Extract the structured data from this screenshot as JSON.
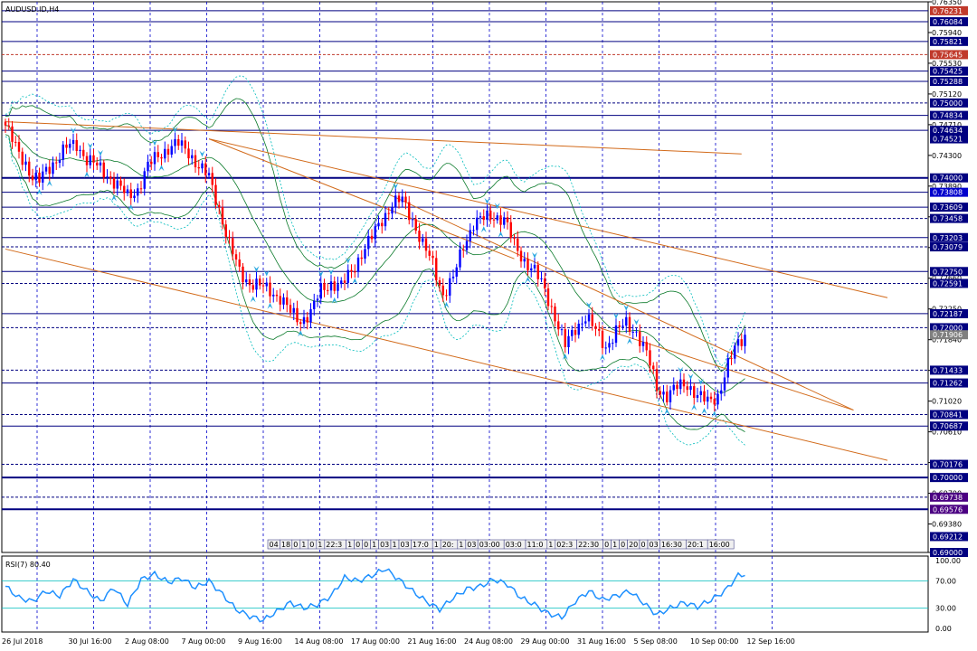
{
  "title": "AUDUSD.ID,H4",
  "rsi_label": "RSI(7) 80.40",
  "colors": {
    "background": "#ffffff",
    "grid": "#0000cc",
    "candle_up": "#0000ff",
    "candle_down": "#ff0000",
    "band": "#0a7a2a",
    "band_outer": "#00bcbc",
    "trendline": "#d26a1a",
    "hline": "#000080",
    "rsi_line": "#1e90ff",
    "rsi_level": "#00bcbc"
  },
  "chart_data": {
    "type": "candlestick",
    "symbol": "AUDUSD.ID",
    "timeframe": "H4",
    "x_tick_labels": [
      "26 Jul 2018",
      "30 Jul 16:00",
      "2 Aug 08:00",
      "7 Aug 00:00",
      "9 Aug 16:00",
      "14 Aug 08:00",
      "17 Aug 00:00",
      "21 Aug 16:00",
      "24 Aug 08:00",
      "29 Aug 00:00",
      "31 Aug 16:00",
      "5 Sep 08:00",
      "10 Sep 00:00",
      "12 Sep 16:00"
    ],
    "ylim": [
      0.69,
      0.7635
    ],
    "y_tick_labels": [
      "0.76350",
      "0.75940",
      "0.75530",
      "0.75120",
      "0.74710",
      "0.74300",
      "0.73890",
      "0.73480",
      "0.73070",
      "0.72660",
      "0.72250",
      "0.71840",
      "0.71430",
      "0.71020",
      "0.70610",
      "0.70200",
      "0.69790",
      "0.69380",
      "0.69000"
    ],
    "level_labels": [
      {
        "value": 0.76231,
        "text": "0.76231",
        "color": "#c0392b"
      },
      {
        "value": 0.76084,
        "text": "0.76084",
        "color": "#000080"
      },
      {
        "value": 0.75821,
        "text": "0.75821",
        "color": "#000080"
      },
      {
        "value": 0.75645,
        "text": "0.75645",
        "color": "#c0392b"
      },
      {
        "value": 0.75425,
        "text": "0.75425",
        "color": "#000080"
      },
      {
        "value": 0.75288,
        "text": "0.75288",
        "color": "#000080"
      },
      {
        "value": 0.75,
        "text": "0.75000",
        "color": "#000080"
      },
      {
        "value": 0.74834,
        "text": "0.74834",
        "color": "#000080"
      },
      {
        "value": 0.74634,
        "text": "0.74634",
        "color": "#000080"
      },
      {
        "value": 0.74521,
        "text": "0.74521",
        "color": "#000080"
      },
      {
        "value": 0.74,
        "text": "0.74000",
        "color": "#000080"
      },
      {
        "value": 0.73808,
        "text": "0.73808",
        "color": "#0000cc"
      },
      {
        "value": 0.73609,
        "text": "0.73609",
        "color": "#000080"
      },
      {
        "value": 0.73458,
        "text": "0.73458",
        "color": "#000080"
      },
      {
        "value": 0.73203,
        "text": "0.73203",
        "color": "#000080"
      },
      {
        "value": 0.73079,
        "text": "0.73079",
        "color": "#000080"
      },
      {
        "value": 0.7275,
        "text": "0.72750",
        "color": "#000080"
      },
      {
        "value": 0.72591,
        "text": "0.72591",
        "color": "#000080"
      },
      {
        "value": 0.72187,
        "text": "0.72187",
        "color": "#000080"
      },
      {
        "value": 0.72,
        "text": "0.72000",
        "color": "#000080"
      },
      {
        "value": 0.71906,
        "text": "0.71906",
        "color": "#808080"
      },
      {
        "value": 0.71433,
        "text": "0.71433",
        "color": "#000080"
      },
      {
        "value": 0.71262,
        "text": "0.71262",
        "color": "#000080"
      },
      {
        "value": 0.70841,
        "text": "0.70841",
        "color": "#000080"
      },
      {
        "value": 0.70687,
        "text": "0.70687",
        "color": "#000080"
      },
      {
        "value": 0.70176,
        "text": "0.70176",
        "color": "#000080"
      },
      {
        "value": 0.7,
        "text": "0.70000",
        "color": "#000080"
      },
      {
        "value": 0.69738,
        "text": "0.69738",
        "color": "#4b0082"
      },
      {
        "value": 0.69576,
        "text": "0.69576",
        "color": "#4b0082"
      },
      {
        "value": 0.69212,
        "text": "0.69212",
        "color": "#000080"
      },
      {
        "value": 0.69,
        "text": "0.69000",
        "color": "#000080"
      }
    ],
    "time_strip_labels": [
      "04",
      "18",
      "0",
      "1",
      "0",
      "1",
      "22:3",
      "1",
      "0",
      "0",
      "1",
      "03",
      "1",
      "03",
      "17:0",
      "1",
      "20:",
      "1",
      "03",
      "03:00",
      "03:0",
      "11:0",
      "1",
      "02:3",
      "22:30",
      "0",
      "1",
      "0",
      "20",
      "0",
      "03",
      "16:30",
      "20:1",
      "16:00"
    ],
    "rsi": {
      "name": "RSI(7)",
      "value": 80.4,
      "ylim": [
        0,
        100
      ],
      "levels": [
        30,
        70
      ],
      "tick_labels": [
        "100.00",
        "70.00",
        "30.00",
        "0.00"
      ]
    },
    "anchors": [
      [
        0,
        0.747
      ],
      [
        3,
        0.744
      ],
      [
        6,
        0.742
      ],
      [
        8,
        0.74
      ],
      [
        10,
        0.7395
      ],
      [
        12,
        0.741
      ],
      [
        15,
        0.7425
      ],
      [
        18,
        0.744
      ],
      [
        21,
        0.7445
      ],
      [
        24,
        0.7425
      ],
      [
        27,
        0.7415
      ],
      [
        30,
        0.7405
      ],
      [
        33,
        0.739
      ],
      [
        36,
        0.7375
      ],
      [
        39,
        0.7385
      ],
      [
        42,
        0.7415
      ],
      [
        45,
        0.743
      ],
      [
        48,
        0.744
      ],
      [
        51,
        0.7445
      ],
      [
        54,
        0.7435
      ],
      [
        57,
        0.7415
      ],
      [
        60,
        0.74
      ],
      [
        63,
        0.736
      ],
      [
        66,
        0.731
      ],
      [
        69,
        0.7275
      ],
      [
        72,
        0.726
      ],
      [
        75,
        0.7255
      ],
      [
        78,
        0.725
      ],
      [
        81,
        0.724
      ],
      [
        84,
        0.722
      ],
      [
        87,
        0.721
      ],
      [
        90,
        0.722
      ],
      [
        93,
        0.725
      ],
      [
        96,
        0.726
      ],
      [
        99,
        0.7255
      ],
      [
        102,
        0.7275
      ],
      [
        105,
        0.73
      ],
      [
        108,
        0.732
      ],
      [
        111,
        0.7345
      ],
      [
        114,
        0.7365
      ],
      [
        117,
        0.737
      ],
      [
        120,
        0.7345
      ],
      [
        123,
        0.731
      ],
      [
        126,
        0.7285
      ],
      [
        129,
        0.7245
      ],
      [
        132,
        0.7265
      ],
      [
        135,
        0.731
      ],
      [
        138,
        0.734
      ],
      [
        141,
        0.7345
      ],
      [
        144,
        0.735
      ],
      [
        147,
        0.7345
      ],
      [
        150,
        0.731
      ],
      [
        153,
        0.729
      ],
      [
        156,
        0.7275
      ],
      [
        159,
        0.725
      ],
      [
        162,
        0.7215
      ],
      [
        165,
        0.7175
      ],
      [
        168,
        0.72
      ],
      [
        171,
        0.7215
      ],
      [
        174,
        0.7195
      ],
      [
        177,
        0.7175
      ],
      [
        180,
        0.7195
      ],
      [
        183,
        0.7205
      ],
      [
        186,
        0.7195
      ],
      [
        189,
        0.7165
      ],
      [
        192,
        0.712
      ],
      [
        195,
        0.711
      ],
      [
        198,
        0.712
      ],
      [
        201,
        0.7125
      ],
      [
        204,
        0.711
      ],
      [
        207,
        0.71
      ],
      [
        210,
        0.711
      ],
      [
        213,
        0.715
      ],
      [
        216,
        0.718
      ],
      [
        218,
        0.719
      ]
    ],
    "rsi_anchors": [
      [
        0,
        62
      ],
      [
        4,
        45
      ],
      [
        8,
        40
      ],
      [
        12,
        55
      ],
      [
        16,
        48
      ],
      [
        20,
        72
      ],
      [
        24,
        55
      ],
      [
        28,
        40
      ],
      [
        32,
        60
      ],
      [
        36,
        35
      ],
      [
        40,
        72
      ],
      [
        44,
        80
      ],
      [
        48,
        68
      ],
      [
        52,
        74
      ],
      [
        56,
        60
      ],
      [
        60,
        70
      ],
      [
        64,
        50
      ],
      [
        68,
        28
      ],
      [
        72,
        18
      ],
      [
        76,
        12
      ],
      [
        80,
        25
      ],
      [
        84,
        38
      ],
      [
        88,
        30
      ],
      [
        92,
        35
      ],
      [
        96,
        48
      ],
      [
        100,
        75
      ],
      [
        104,
        70
      ],
      [
        108,
        78
      ],
      [
        112,
        88
      ],
      [
        116,
        72
      ],
      [
        120,
        55
      ],
      [
        124,
        40
      ],
      [
        128,
        28
      ],
      [
        132,
        45
      ],
      [
        136,
        58
      ],
      [
        140,
        62
      ],
      [
        144,
        72
      ],
      [
        148,
        65
      ],
      [
        152,
        45
      ],
      [
        156,
        35
      ],
      [
        160,
        22
      ],
      [
        164,
        16
      ],
      [
        168,
        40
      ],
      [
        172,
        55
      ],
      [
        176,
        42
      ],
      [
        180,
        48
      ],
      [
        184,
        55
      ],
      [
        188,
        38
      ],
      [
        192,
        20
      ],
      [
        196,
        30
      ],
      [
        200,
        38
      ],
      [
        204,
        32
      ],
      [
        208,
        42
      ],
      [
        212,
        55
      ],
      [
        216,
        78
      ],
      [
        218,
        80
      ]
    ],
    "bands": {
      "period": 20,
      "inner_deviation": 2.0,
      "outer_deviation": 2.5
    },
    "trendlines": [
      {
        "p1": [
          0,
          0.7475
        ],
        "p2": [
          217,
          0.7432
        ]
      },
      {
        "p1": [
          60,
          0.7452
        ],
        "p2": [
          260,
          0.724
        ]
      },
      {
        "p1": [
          0,
          0.7305
        ],
        "p2": [
          260,
          0.7023
        ]
      },
      {
        "p1": [
          60,
          0.7452
        ],
        "p2": [
          150,
          0.7292
        ]
      },
      {
        "p1": [
          113,
          0.7378
        ],
        "p2": [
          250,
          0.709
        ]
      },
      {
        "p1": [
          175,
          0.72
        ],
        "p2": [
          250,
          0.709
        ]
      }
    ],
    "hlines": [
      {
        "value": 0.76231,
        "style": "solid"
      },
      {
        "value": 0.76084,
        "style": "solid"
      },
      {
        "value": 0.75821,
        "style": "solid"
      },
      {
        "value": 0.75645,
        "style": "dashed-red"
      },
      {
        "value": 0.75425,
        "style": "solid"
      },
      {
        "value": 0.75288,
        "style": "solid"
      },
      {
        "value": 0.75,
        "style": "dashed"
      },
      {
        "value": 0.74834,
        "style": "solid"
      },
      {
        "value": 0.74634,
        "style": "solid"
      },
      {
        "value": 0.74,
        "style": "solid-thick"
      },
      {
        "value": 0.73808,
        "style": "solid"
      },
      {
        "value": 0.73609,
        "style": "solid"
      },
      {
        "value": 0.73458,
        "style": "dashed"
      },
      {
        "value": 0.73203,
        "style": "solid"
      },
      {
        "value": 0.73079,
        "style": "dashed"
      },
      {
        "value": 0.7275,
        "style": "solid"
      },
      {
        "value": 0.72591,
        "style": "dashed"
      },
      {
        "value": 0.72187,
        "style": "solid"
      },
      {
        "value": 0.72,
        "style": "dashed"
      },
      {
        "value": 0.71433,
        "style": "dashed"
      },
      {
        "value": 0.71262,
        "style": "solid"
      },
      {
        "value": 0.70841,
        "style": "dashed"
      },
      {
        "value": 0.70687,
        "style": "solid"
      },
      {
        "value": 0.70176,
        "style": "dashed"
      },
      {
        "value": 0.7,
        "style": "solid-thick"
      },
      {
        "value": 0.69738,
        "style": "dashed"
      },
      {
        "value": 0.69576,
        "style": "solid-thick"
      }
    ]
  }
}
